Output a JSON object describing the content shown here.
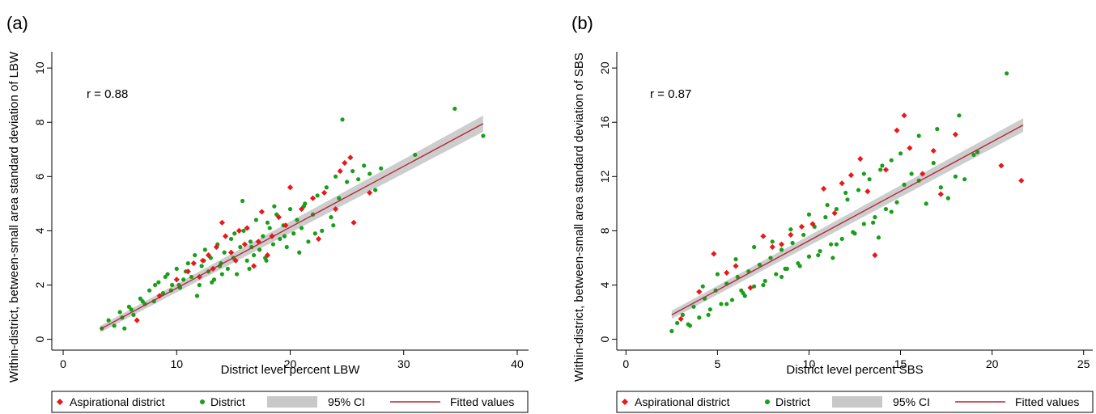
{
  "chart_data": [
    {
      "type": "scatter",
      "panel_label": "(a)",
      "annotation": "r = 0.88",
      "xlabel": "District level percent LBW",
      "ylabel": "Within-district, between-small area standard deviation of LBW",
      "xlim": [
        -1,
        41
      ],
      "ylim": [
        -0.4,
        10.6
      ],
      "xticks": [
        0,
        10,
        20,
        30,
        40
      ],
      "yticks": [
        0,
        2,
        4,
        6,
        8,
        10
      ],
      "grid": false,
      "legend_position": "bottom",
      "legend": [
        "Aspirational district",
        "District",
        "95% CI",
        "Fitted values"
      ],
      "colors": {
        "aspirational": "#e8191c",
        "district": "#1a9e1a",
        "ci": "#c8c8c8",
        "fit": "#b22a3a"
      },
      "fit": {
        "x": [
          3.3,
          37
        ],
        "y": [
          0.38,
          7.95
        ],
        "ci_halfwidth_start": 0.12,
        "ci_halfwidth_end": 0.3
      },
      "series": [
        {
          "name": "Aspirational district",
          "marker": "diamond",
          "x": [
            6.5,
            8.5,
            10,
            11,
            11.5,
            12,
            12.3,
            12.8,
            13.2,
            13.5,
            14,
            14.3,
            14.8,
            15.2,
            15.5,
            16,
            16.2,
            16.8,
            17.2,
            17.5,
            18,
            18.4,
            19,
            19.6,
            20,
            21,
            22,
            22.5,
            23,
            24,
            24.4,
            24.8,
            25.3,
            25.6,
            27
          ],
          "y": [
            0.7,
            1.6,
            2.2,
            2.5,
            2.8,
            2.3,
            2.9,
            3.1,
            2.6,
            3.4,
            4.3,
            3.8,
            3.2,
            2.9,
            4.0,
            3.5,
            4.1,
            2.7,
            3.6,
            4.7,
            3.1,
            3.8,
            4.5,
            4.2,
            5.6,
            4.8,
            5.2,
            3.7,
            5.4,
            4.8,
            6.2,
            6.5,
            6.7,
            4.3,
            5.4
          ]
        },
        {
          "name": "District",
          "marker": "circle",
          "x": [
            3.4,
            4,
            4.5,
            5,
            5.4,
            5.8,
            6.2,
            6.8,
            7.2,
            7.6,
            8,
            8.4,
            8.8,
            9.2,
            9.6,
            10,
            10.3,
            10.6,
            11,
            11.3,
            11.6,
            12,
            12.2,
            12.5,
            12.8,
            13,
            13.3,
            13.6,
            13.9,
            14.2,
            14.5,
            14.8,
            15,
            15.3,
            15.6,
            15.9,
            16.2,
            16.5,
            16.8,
            17,
            17.3,
            17.6,
            17.9,
            18.2,
            18.5,
            18.8,
            19.1,
            19.4,
            19.7,
            20,
            20.3,
            20.6,
            21,
            21.3,
            21.6,
            22,
            22.4,
            22.8,
            23.2,
            23.6,
            24,
            24.3,
            24.6,
            25,
            25.5,
            26,
            26.5,
            27,
            27.5,
            28,
            31,
            34.5,
            37,
            5.2,
            6,
            7,
            8.1,
            9.5,
            10.8,
            12.4,
            13.8,
            15.1,
            16.6,
            18,
            19.5,
            21.2,
            14,
            16.4,
            11.8,
            13.1,
            17.8,
            20.8,
            23.8,
            9,
            10.2,
            15.8,
            18.6,
            22.2
          ],
          "y": [
            0.4,
            0.7,
            0.5,
            1.0,
            0.4,
            1.2,
            0.9,
            1.5,
            1.3,
            1.8,
            1.4,
            2.1,
            1.7,
            2.4,
            2.0,
            2.6,
            1.9,
            2.2,
            2.8,
            2.3,
            3.1,
            2.0,
            2.7,
            3.3,
            2.5,
            3.0,
            2.2,
            3.5,
            2.8,
            3.2,
            2.6,
            3.7,
            3.0,
            2.4,
            3.4,
            4.0,
            2.9,
            3.6,
            3.1,
            4.4,
            3.3,
            3.8,
            2.9,
            4.1,
            3.5,
            4.6,
            3.7,
            4.2,
            3.4,
            4.8,
            3.9,
            4.4,
            4.1,
            5.0,
            3.6,
            4.6,
            5.3,
            4.0,
            5.6,
            4.5,
            6.0,
            5.2,
            8.1,
            5.8,
            6.2,
            5.9,
            6.4,
            6.1,
            5.5,
            6.3,
            6.8,
            8.5,
            7.5,
            0.8,
            1.1,
            1.4,
            2.0,
            1.8,
            2.5,
            2.9,
            2.7,
            3.9,
            3.4,
            4.3,
            3.8,
            4.9,
            2.4,
            2.6,
            1.6,
            2.1,
            3.0,
            3.2,
            4.2,
            2.3,
            2.0,
            5.1,
            4.9,
            3.9
          ]
        }
      ]
    },
    {
      "type": "scatter",
      "panel_label": "(b)",
      "annotation": "r = 0.87",
      "xlabel": "District level percent SBS",
      "ylabel": "Within-district, between-small area standard deviation of SBS",
      "xlim": [
        -0.5,
        25.5
      ],
      "ylim": [
        -0.8,
        21.2
      ],
      "xticks": [
        0,
        5,
        10,
        15,
        20,
        25
      ],
      "yticks": [
        0,
        4,
        8,
        12,
        16,
        20
      ],
      "grid": false,
      "legend_position": "bottom",
      "legend": [
        "Aspirational district",
        "District",
        "95% CI",
        "Fitted values"
      ],
      "colors": {
        "aspirational": "#e8191c",
        "district": "#1a9e1a",
        "ci": "#c8c8c8",
        "fit": "#b22a3a"
      },
      "fit": {
        "x": [
          2.5,
          21.7
        ],
        "y": [
          1.8,
          15.8
        ],
        "ci_halfwidth_start": 0.3,
        "ci_halfwidth_end": 0.5
      },
      "series": [
        {
          "name": "Aspirational district",
          "marker": "diamond",
          "x": [
            3,
            4,
            4.8,
            5.5,
            6,
            6.8,
            7.5,
            8,
            8.5,
            9,
            9.6,
            10.2,
            10.8,
            11.4,
            11.8,
            12.3,
            12.8,
            13.2,
            13.6,
            14.2,
            14.8,
            15.2,
            15.5,
            16.2,
            16.8,
            17.2,
            18,
            20.5,
            21.6
          ],
          "y": [
            1.5,
            3.5,
            6.3,
            4.9,
            5.4,
            3.8,
            7.6,
            6.8,
            7.0,
            7.7,
            8.3,
            8.5,
            11.1,
            9.3,
            11.5,
            12.1,
            13.3,
            10.9,
            6.2,
            12.5,
            15.4,
            16.5,
            14.1,
            12.2,
            13.9,
            10.7,
            15.1,
            12.8,
            11.7
          ]
        },
        {
          "name": "District",
          "marker": "circle",
          "x": [
            2.5,
            2.8,
            3.1,
            3.4,
            3.7,
            4.0,
            4.3,
            4.6,
            4.9,
            5.2,
            5.5,
            5.8,
            6.1,
            6.4,
            6.7,
            7.0,
            7.3,
            7.6,
            7.9,
            8.2,
            8.5,
            8.8,
            9.1,
            9.4,
            9.7,
            10.0,
            10.3,
            10.6,
            10.9,
            11.2,
            11.5,
            11.8,
            12.1,
            12.4,
            12.7,
            13.0,
            13.3,
            13.6,
            13.9,
            14.2,
            14.5,
            14.8,
            15.2,
            15.6,
            16,
            16.4,
            16.8,
            17.2,
            17.6,
            18,
            18.5,
            19,
            20.8,
            3.5,
            4.5,
            5.5,
            6.5,
            7.5,
            8.5,
            9.5,
            10.5,
            11.5,
            12.5,
            13.5,
            14.5,
            6,
            8,
            10,
            12,
            14,
            16,
            18.2,
            5,
            7,
            9,
            11,
            13,
            15,
            17,
            19.2,
            4.2,
            6.3,
            8.7,
            11.3,
            13.8
          ],
          "y": [
            0.6,
            1.2,
            1.8,
            1.1,
            2.4,
            1.6,
            3.0,
            2.2,
            3.6,
            2.6,
            4.1,
            2.9,
            4.6,
            3.4,
            5.0,
            3.9,
            5.5,
            4.3,
            6.0,
            4.8,
            6.6,
            5.2,
            7.1,
            5.6,
            7.7,
            6.1,
            8.3,
            6.5,
            9.0,
            7.0,
            9.6,
            7.4,
            10.3,
            7.9,
            11.0,
            8.5,
            11.8,
            9.0,
            12.5,
            9.6,
            13.2,
            10.1,
            11.4,
            12.2,
            11.7,
            10.0,
            13.0,
            11.2,
            10.4,
            12.0,
            11.8,
            13.6,
            19.6,
            1.0,
            1.8,
            2.6,
            3.2,
            4.0,
            4.6,
            5.4,
            6.2,
            7.0,
            7.8,
            8.6,
            9.4,
            5.9,
            7.2,
            9.2,
            10.8,
            12.8,
            15.0,
            16.5,
            4.8,
            6.8,
            8.1,
            9.9,
            12.2,
            13.7,
            15.5,
            13.8,
            3.9,
            3.6,
            5.2,
            6.0,
            7.5
          ]
        }
      ]
    }
  ]
}
